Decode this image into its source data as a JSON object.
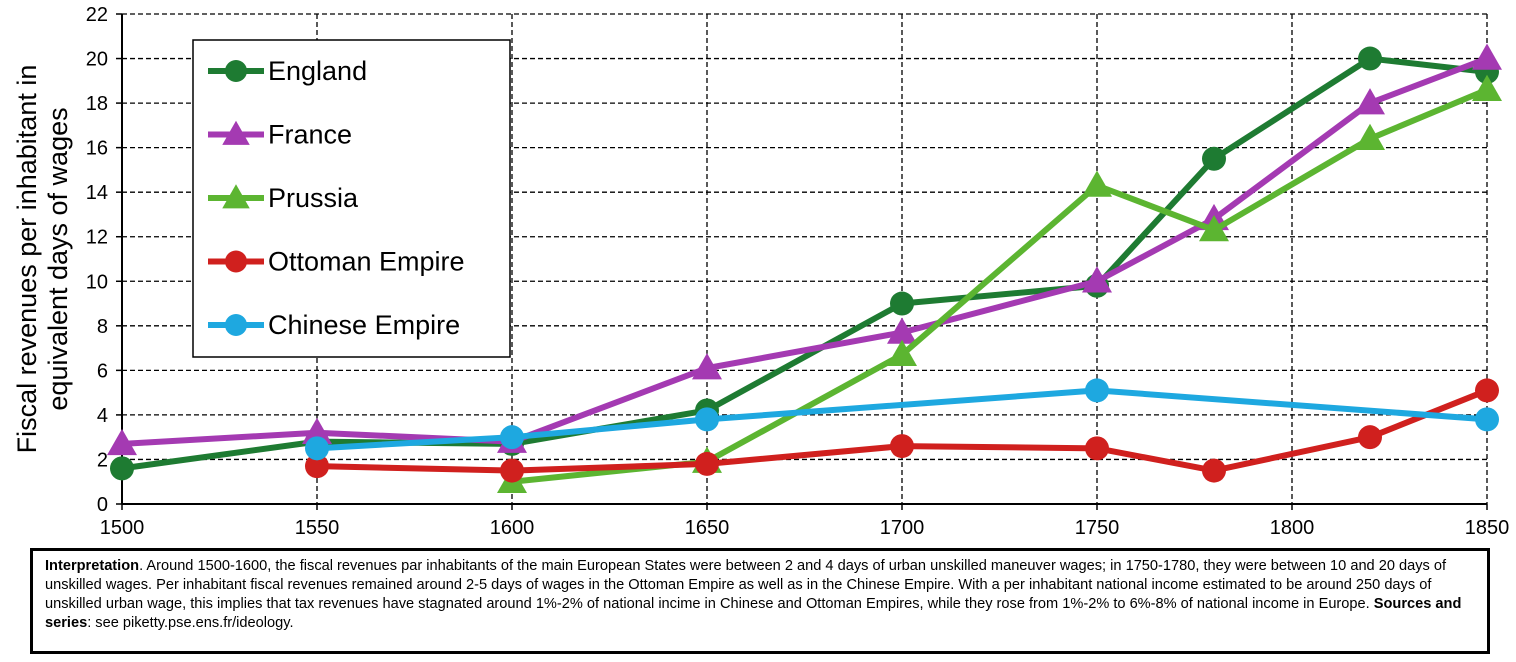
{
  "chart_data": {
    "type": "line",
    "ylabel": "Fiscal revenues per inhabitant in equivalent days of wages",
    "ylabel_lines": [
      "Fiscal revenues per inhabitant in",
      "equivalent days of wages"
    ],
    "xlabel": "",
    "xlim": [
      1500,
      1850
    ],
    "ylim": [
      0,
      22
    ],
    "x_ticks": [
      1500,
      1550,
      1600,
      1650,
      1700,
      1750,
      1800,
      1850
    ],
    "y_ticks": [
      0,
      2,
      4,
      6,
      8,
      10,
      12,
      14,
      16,
      18,
      20,
      22
    ],
    "grid": true,
    "legend_position": "top-left",
    "series": [
      {
        "name": "England",
        "color": "#1e7b32",
        "marker": "circle",
        "x": [
          1500,
          1550,
          1600,
          1650,
          1700,
          1750,
          1780,
          1820,
          1850
        ],
        "y": [
          1.6,
          2.8,
          2.7,
          4.2,
          9.0,
          9.8,
          15.5,
          20.0,
          19.4
        ]
      },
      {
        "name": "France",
        "color": "#a43ab2",
        "marker": "triangle",
        "x": [
          1500,
          1550,
          1600,
          1650,
          1700,
          1750,
          1780,
          1820,
          1850
        ],
        "y": [
          2.7,
          3.2,
          2.8,
          6.1,
          7.7,
          10.0,
          12.8,
          18.0,
          20.0
        ]
      },
      {
        "name": "Prussia",
        "color": "#5cb531",
        "marker": "triangle",
        "x": [
          1600,
          1650,
          1700,
          1750,
          1780,
          1820,
          1850
        ],
        "y": [
          1.0,
          1.9,
          6.7,
          14.3,
          12.3,
          16.4,
          18.6
        ]
      },
      {
        "name": "Ottoman Empire",
        "color": "#d0201e",
        "marker": "circle",
        "x": [
          1550,
          1600,
          1650,
          1700,
          1750,
          1780,
          1820,
          1850
        ],
        "y": [
          1.7,
          1.5,
          1.8,
          2.6,
          2.5,
          1.5,
          3.0,
          5.1
        ]
      },
      {
        "name": "Chinese Empire",
        "color": "#1ea8e0",
        "marker": "circle",
        "x": [
          1550,
          1600,
          1650,
          1750,
          1850
        ],
        "y": [
          2.5,
          3.0,
          3.8,
          5.1,
          3.8
        ]
      }
    ]
  },
  "note": {
    "interpretation_label": "Interpretation",
    "interpretation_text": ". Around 1500-1600, the fiscal revenues par inhabitants of the main European States were between 2 and 4 days of urban unskilled maneuver wages; in 1750-1780, they were between 10 and 20 days of unskilled wages. Per inhabitant fiscal revenues remained around 2-5 days of wages in the Ottoman Empire as well as in the Chinese Empire. With a per inhabitant national income estimated to be around 250 days of unskilled urban wage, this implies that tax revenues have stagnated around 1%-2% of national incime in Chinese and Ottoman Empires, while they rose from 1%-2% to 6%-8% of national income in Europe. ",
    "sources_label": "Sources and series",
    "sources_text": ": see piketty.pse.ens.fr/ideology."
  }
}
